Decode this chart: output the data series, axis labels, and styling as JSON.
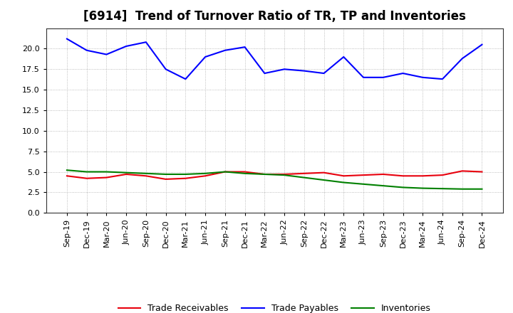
{
  "title": "[6914]  Trend of Turnover Ratio of TR, TP and Inventories",
  "labels": [
    "Sep-19",
    "Dec-19",
    "Mar-20",
    "Jun-20",
    "Sep-20",
    "Dec-20",
    "Mar-21",
    "Jun-21",
    "Sep-21",
    "Dec-21",
    "Mar-22",
    "Jun-22",
    "Sep-22",
    "Dec-22",
    "Mar-23",
    "Jun-23",
    "Sep-23",
    "Dec-23",
    "Mar-24",
    "Jun-24",
    "Sep-24",
    "Dec-24"
  ],
  "trade_receivables": [
    4.5,
    4.2,
    4.3,
    4.7,
    4.5,
    4.1,
    4.2,
    4.5,
    5.0,
    5.0,
    4.7,
    4.7,
    4.8,
    4.9,
    4.5,
    4.6,
    4.7,
    4.5,
    4.5,
    4.6,
    5.1,
    5.0
  ],
  "trade_payables": [
    21.2,
    19.8,
    19.3,
    20.3,
    20.8,
    17.5,
    16.3,
    19.0,
    19.8,
    20.2,
    17.0,
    17.5,
    17.3,
    17.0,
    19.0,
    16.5,
    16.5,
    17.0,
    16.5,
    16.3,
    18.8,
    20.5
  ],
  "inventories": [
    5.2,
    5.0,
    5.0,
    4.9,
    4.8,
    4.7,
    4.7,
    4.8,
    5.0,
    4.8,
    4.7,
    4.6,
    4.3,
    4.0,
    3.7,
    3.5,
    3.3,
    3.1,
    3.0,
    2.95,
    2.9,
    2.9
  ],
  "tr_color": "#e8000d",
  "tp_color": "#0000ff",
  "inv_color": "#008000",
  "bg_color": "#ffffff",
  "plot_bg_color": "#ffffff",
  "grid_color": "#aaaaaa",
  "ylim": [
    0,
    22.5
  ],
  "yticks": [
    0.0,
    2.5,
    5.0,
    7.5,
    10.0,
    12.5,
    15.0,
    17.5,
    20.0
  ],
  "legend_labels": [
    "Trade Receivables",
    "Trade Payables",
    "Inventories"
  ],
  "title_fontsize": 12,
  "tick_fontsize": 8,
  "linewidth": 1.5
}
